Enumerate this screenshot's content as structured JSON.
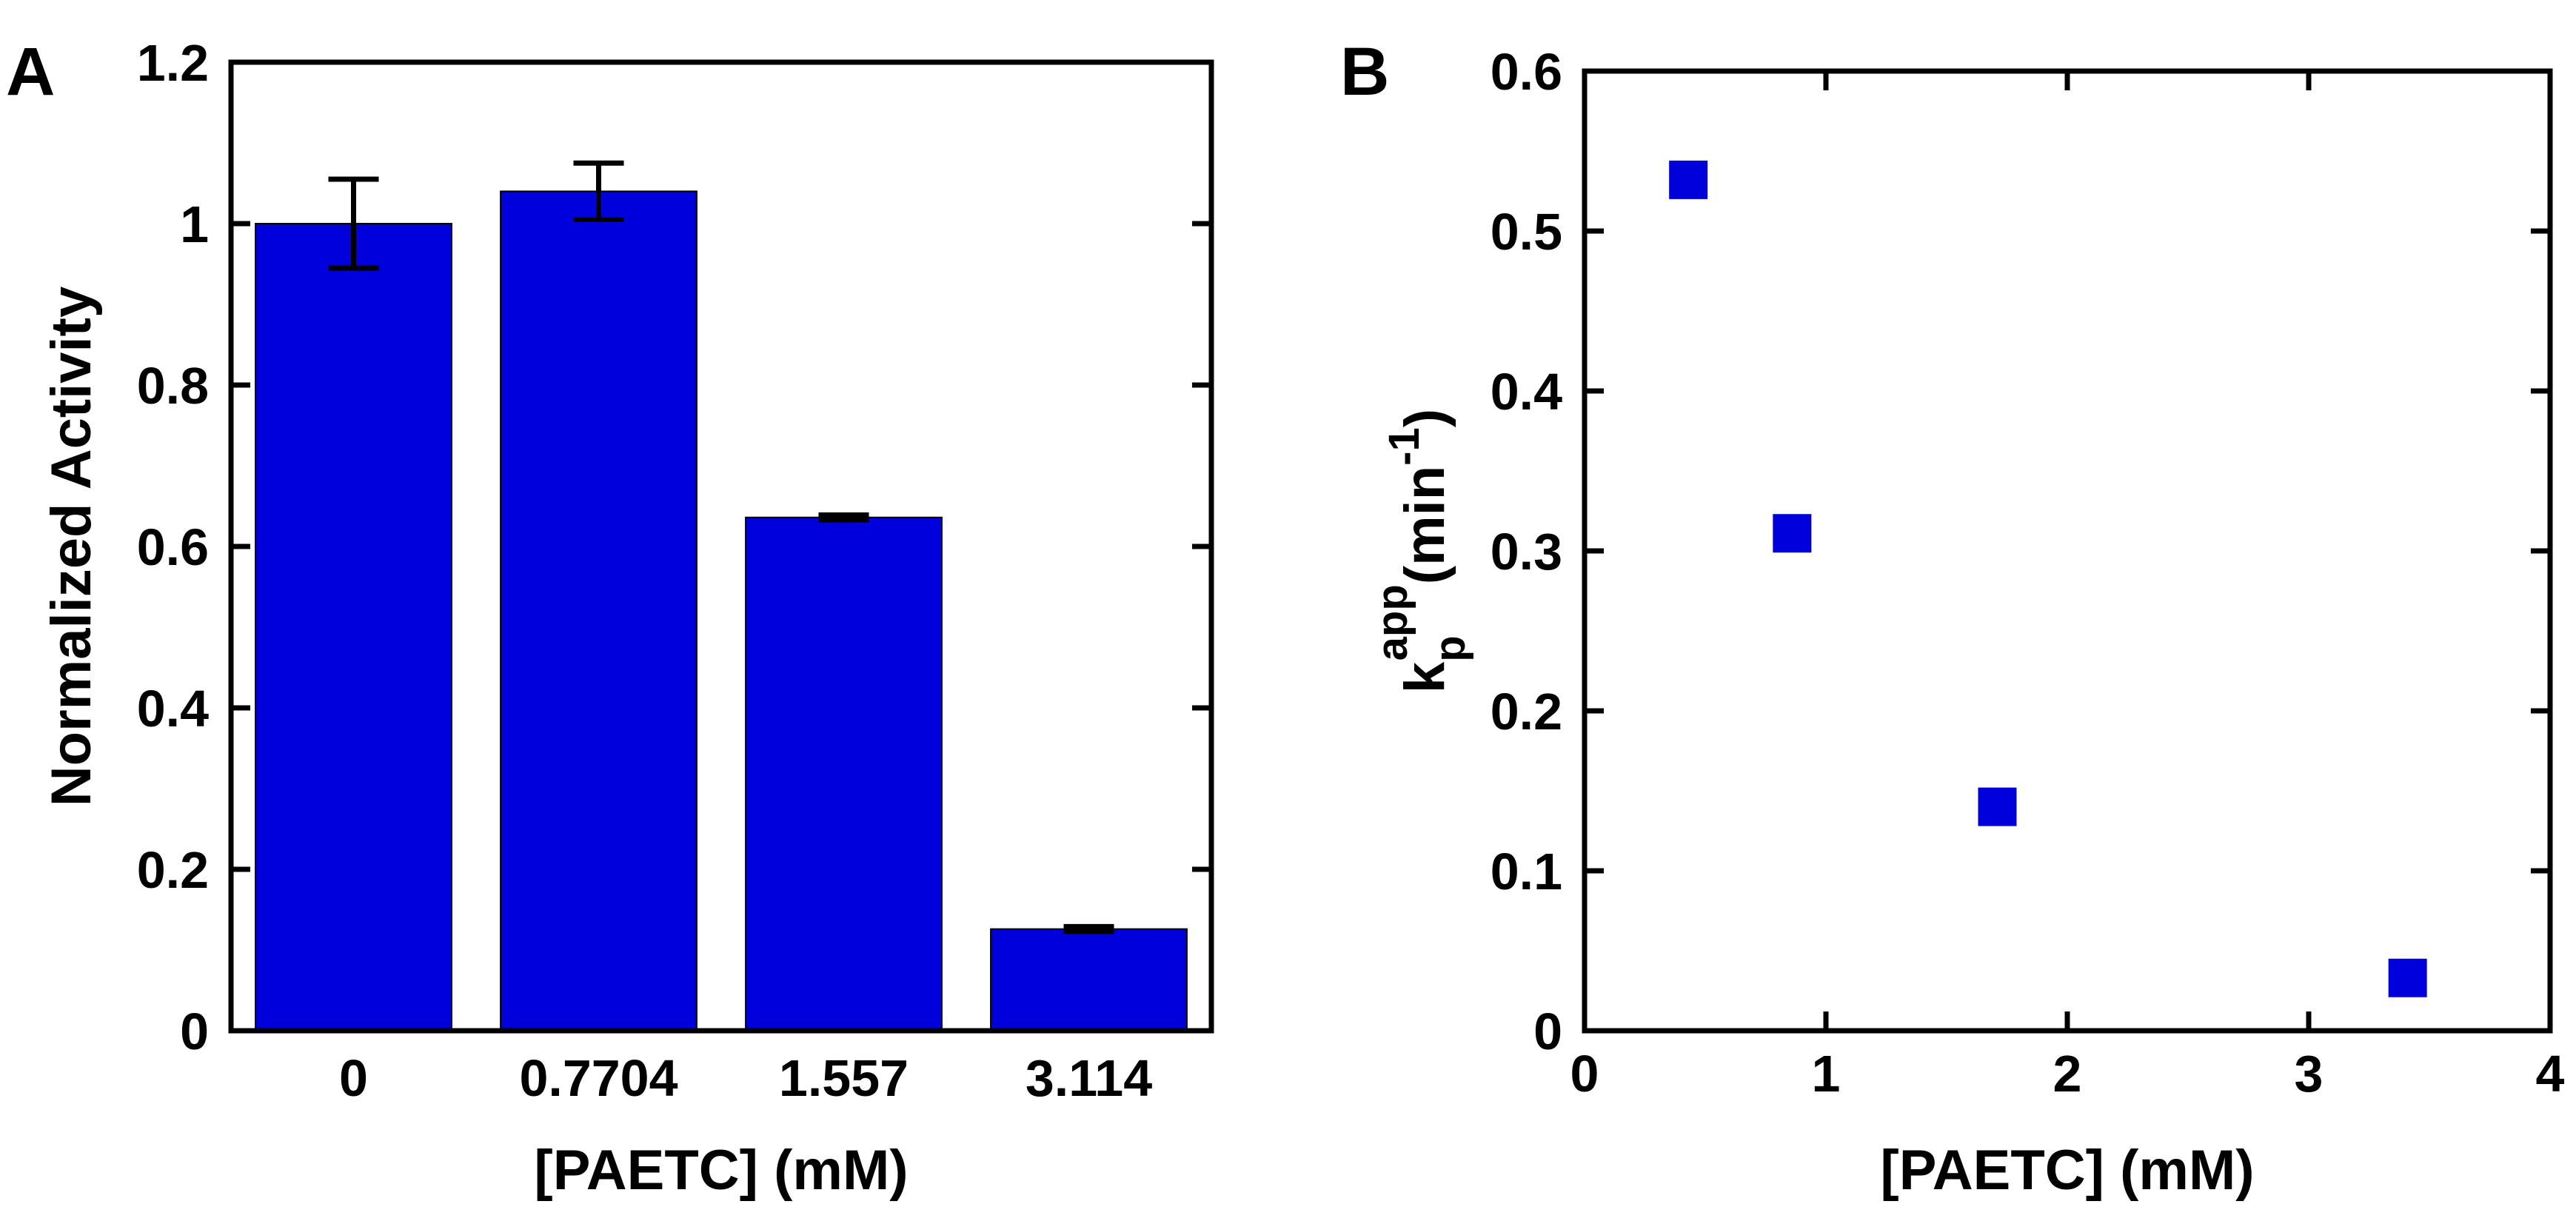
{
  "chart_data": [
    {
      "panel": "A",
      "type": "bar",
      "title": "",
      "xlabel": "[PAETC] (mM)",
      "ylabel": "Normalized Activity",
      "categories": [
        "0",
        "0.7704",
        "1.557",
        "3.114"
      ],
      "values": [
        1.0,
        1.04,
        0.636,
        0.126
      ],
      "errors": [
        0.055,
        0.035,
        0.003,
        0.003
      ],
      "ylim": [
        0,
        1.2
      ],
      "yticks": [
        0,
        0.2,
        0.4,
        0.6,
        0.8,
        1,
        1.2
      ],
      "ytick_labels": [
        "0",
        "0.2",
        "0.4",
        "0.6",
        "0.8",
        "1",
        "1.2"
      ],
      "grid": false,
      "color": "#0000DD"
    },
    {
      "panel": "B",
      "type": "scatter",
      "title": "",
      "xlabel": "[PAETC] (mM)",
      "ylabel_main": "k",
      "ylabel_sub": "p",
      "ylabel_sup": "app",
      "ylabel_unit_open": "(min",
      "ylabel_unit_sup": "-1",
      "ylabel_unit_close": ")",
      "x": [
        0.43,
        0.86,
        1.71,
        3.41
      ],
      "y": [
        0.532,
        0.311,
        0.14,
        0.033
      ],
      "xlim": [
        0,
        4
      ],
      "ylim": [
        0,
        0.6
      ],
      "xticks": [
        0,
        1,
        2,
        3,
        4
      ],
      "xtick_labels": [
        "0",
        "1",
        "2",
        "3",
        "4"
      ],
      "yticks": [
        0,
        0.1,
        0.2,
        0.3,
        0.4,
        0.5,
        0.6
      ],
      "ytick_labels": [
        "0",
        "0.1",
        "0.2",
        "0.3",
        "0.4",
        "0.5",
        "0.6"
      ],
      "grid": false,
      "marker": "square",
      "color": "#0000DD"
    }
  ]
}
